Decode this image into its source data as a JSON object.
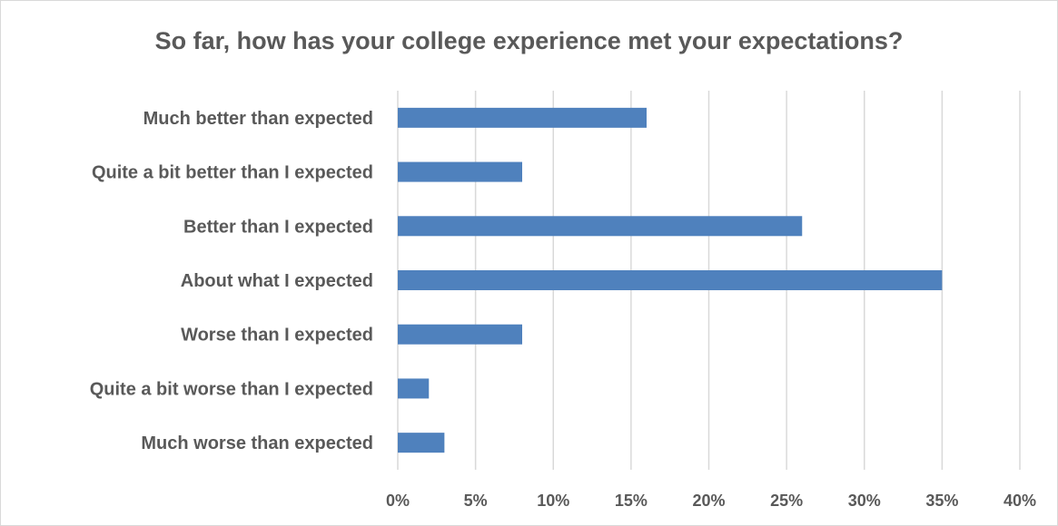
{
  "chart_data": {
    "type": "bar",
    "orientation": "horizontal",
    "title": "So far, how has your college experience met your expectations?",
    "categories": [
      "Much better than expected",
      "Quite a bit better than I expected",
      "Better than I expected",
      "About what I expected",
      "Worse than I expected",
      "Quite a bit worse than I expected",
      "Much worse than expected"
    ],
    "values": [
      16,
      8,
      26,
      35,
      8,
      2,
      3
    ],
    "value_unit": "%",
    "xlim": [
      0,
      40
    ],
    "xticks": [
      0,
      5,
      10,
      15,
      20,
      25,
      30,
      35,
      40
    ],
    "xtick_labels": [
      "0%",
      "5%",
      "10%",
      "15%",
      "20%",
      "25%",
      "30%",
      "35%",
      "40%"
    ],
    "xlabel": "",
    "ylabel": "",
    "grid": "vertical",
    "legend": "none",
    "bar_color": "#4f81bd"
  }
}
